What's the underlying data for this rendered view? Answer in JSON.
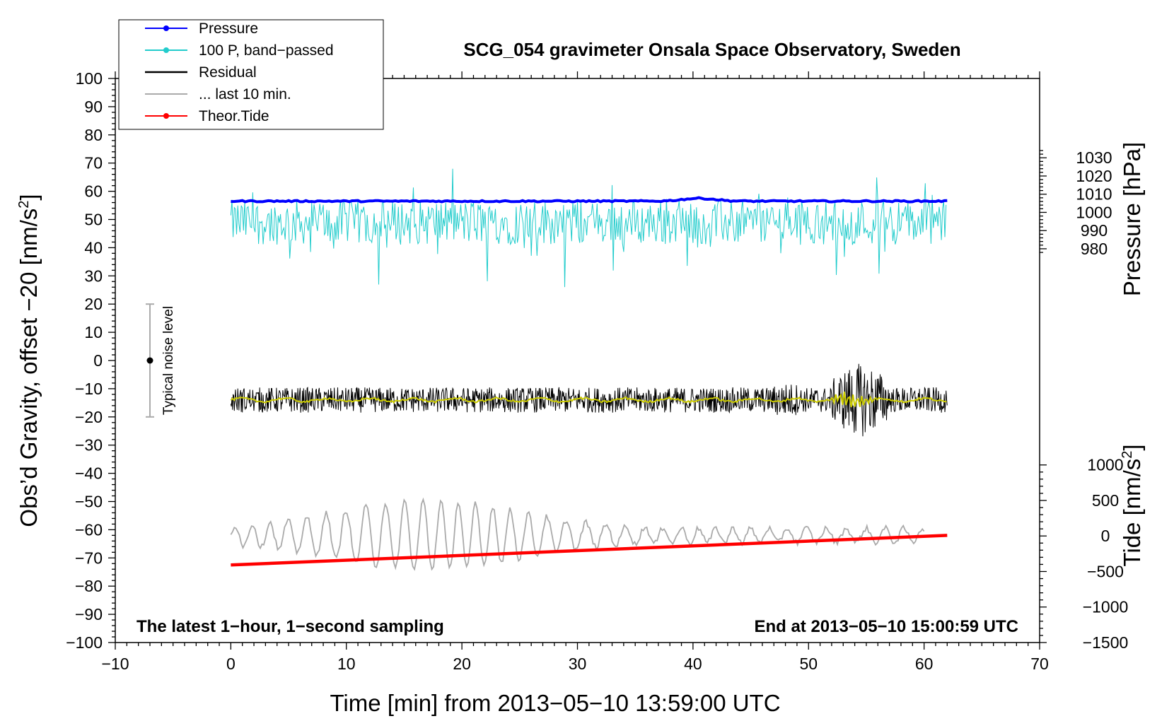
{
  "chart_data": {
    "type": "line",
    "title": "SCG_054 gravimeter Onsala Space Observatory, Sweden",
    "xlabel": "Time [min] from 2013−05−10 13:59:00 UTC",
    "ylabel_left": "Obs’d Gravity, offset −20 [nm/s²]",
    "ylabel_left_main": "Obs’d Gravity, offset −20 [nm/s",
    "ylabel_left_sup": "2",
    "ylabel_left_close": "]",
    "ylabel_pressure": "Pressure [hPa]",
    "ylabel_tide_main": "Tide [nm/s",
    "ylabel_tide_sup": "2",
    "ylabel_tide_close": "]",
    "xlim": [
      -10,
      70
    ],
    "ylim": [
      -100,
      100
    ],
    "x_ticks": [
      "−10",
      "0",
      "10",
      "20",
      "30",
      "40",
      "50",
      "60",
      "70"
    ],
    "y_ticks": [
      "100",
      "90",
      "80",
      "70",
      "60",
      "50",
      "40",
      "30",
      "20",
      "10",
      "0",
      "−10",
      "−20",
      "−30",
      "−40",
      "−50",
      "−60",
      "−70",
      "−80",
      "−90",
      "−100"
    ],
    "pressure_ticks": [
      "1030",
      "1020",
      "1010",
      "1000",
      "990",
      "980"
    ],
    "pressure_tick_values": [
      1030,
      1020,
      1010,
      1000,
      990,
      980
    ],
    "pressure_axis_map": {
      "at_left_y": 60,
      "hpa": 1011.6,
      "hpa_per_left_unit": 1.55
    },
    "tide_ticks": [
      "1000",
      "500",
      "0",
      "−500",
      "−1000",
      "−1500"
    ],
    "tide_tick_values": [
      1000,
      500,
      0,
      -500,
      -1000,
      -1500
    ],
    "tide_axis_map": {
      "at_left_y": -100,
      "tide": -1500,
      "tide_per_left_unit": 39.7
    },
    "legend": [
      {
        "label": "Pressure",
        "color": "#0000ff",
        "marker": true
      },
      {
        "label": "100 P, band−passed",
        "color": "#22cccc",
        "marker": true
      },
      {
        "label": "Residual",
        "color": "#000000",
        "marker": false
      },
      {
        "label": "... last 10 min.",
        "color": "#aaaaaa",
        "marker": false
      },
      {
        "label": "Theor.Tide",
        "color": "#ff0000",
        "marker": true
      }
    ],
    "legend_position": "top-left",
    "annotation_left": "The latest 1−hour, 1−second sampling",
    "annotation_right": "End at 2013−05−10 15:00:59 UTC",
    "noise_label": "Typical noise level",
    "noise_bar": {
      "x": -7,
      "center": 0,
      "low": -20,
      "high": 20
    },
    "series": [
      {
        "name": "Pressure",
        "color": "#0000ff",
        "approx_level_left_axis": 56.5,
        "x_range": [
          0,
          62
        ],
        "bump": {
          "x": 40.5,
          "peak": 57.5
        }
      },
      {
        "name": "100 P, band-passed",
        "color": "#22cccc",
        "approx_mean": 49,
        "approx_range": [
          24,
          68
        ],
        "x_range": [
          0,
          62
        ]
      },
      {
        "name": "Residual",
        "color": "#000000",
        "approx_mean": -14,
        "approx_range": [
          -27,
          0
        ],
        "event_window": [
          52,
          57
        ],
        "x_range": [
          0,
          62
        ]
      },
      {
        "name": "Residual smoothed",
        "color": "#cccc00",
        "approx_mean": -14,
        "x_range": [
          0,
          62
        ]
      },
      {
        "name": "... last 10 min.",
        "color": "#aaaaaa",
        "approx_mean": -62,
        "approx_range": [
          -74,
          -48
        ],
        "x_range": [
          0,
          60
        ]
      },
      {
        "name": "Theor.Tide",
        "color": "#ff0000",
        "x": [
          0,
          62
        ],
        "values": [
          -72.5,
          -62
        ]
      }
    ]
  }
}
